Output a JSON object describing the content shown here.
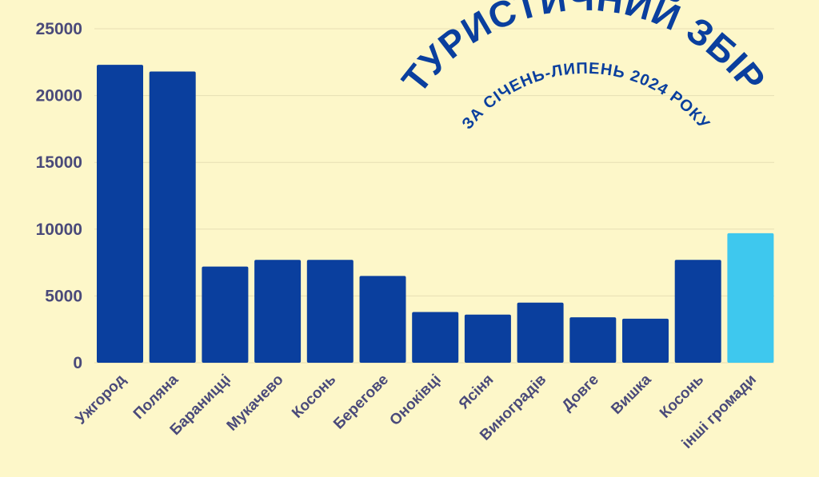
{
  "chart_data": {
    "type": "bar",
    "title": "ТУРИСТИЧНИЙ ЗБІР",
    "subtitle": "ЗА СІЧЕНЬ-ЛИПЕНЬ 2024 РОКУ",
    "xlabel": "",
    "ylabel": "",
    "ylim": [
      0,
      25000
    ],
    "yticks": [
      "25000",
      "20000",
      "15000",
      "10000",
      "5000",
      "0"
    ],
    "ytick_values": [
      25000,
      20000,
      15000,
      10000,
      5000,
      0
    ],
    "grid": true,
    "categories": [
      "Ужгород",
      "Поляна",
      "Бараницці",
      "Мукачево",
      "Косонь",
      "Берегове",
      "Оноківці",
      "Ясіня",
      "Виноградів",
      "Довге",
      "Вишка",
      "Косонь",
      "інші громади"
    ],
    "values": [
      22300,
      21800,
      7200,
      7700,
      7700,
      6500,
      3800,
      3600,
      4500,
      3400,
      3300,
      7700,
      9700
    ],
    "bar_color": "#0a3f9e",
    "highlight_color": "#3ec8ee",
    "highlight_index": 12
  }
}
